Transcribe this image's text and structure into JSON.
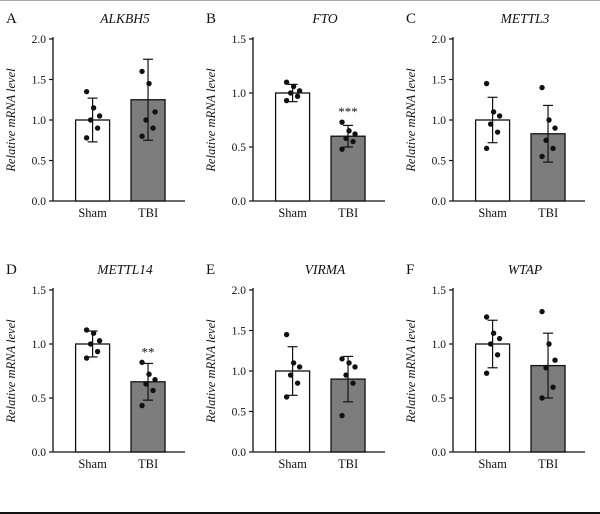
{
  "figure": {
    "layout": {
      "rows": 2,
      "cols": 3
    },
    "ylabel": "Relative mRNA level",
    "categories": [
      "Sham",
      "TBI"
    ],
    "bar_colors": [
      "#ffffff",
      "#7d7d7d"
    ]
  },
  "chart_data": [
    {
      "type": "bar",
      "panel": "A",
      "title": "ALKBH5",
      "categories": [
        "Sham",
        "TBI"
      ],
      "values": [
        1.0,
        1.25
      ],
      "errors": [
        0.27,
        0.5
      ],
      "points": [
        [
          0.78,
          0.9,
          1.0,
          1.05,
          1.15,
          1.35
        ],
        [
          0.8,
          0.9,
          1.0,
          1.1,
          1.45,
          1.6
        ]
      ],
      "significance": "",
      "ylabel": "Relative mRNA level",
      "ylim": [
        0,
        2.0
      ],
      "yticks": [
        0,
        0.5,
        1.0,
        1.5,
        2.0
      ],
      "bar_colors": [
        "#ffffff",
        "#7d7d7d"
      ]
    },
    {
      "type": "bar",
      "panel": "B",
      "title": "FTO",
      "categories": [
        "Sham",
        "TBI"
      ],
      "values": [
        1.0,
        0.6
      ],
      "errors": [
        0.08,
        0.1
      ],
      "points": [
        [
          0.93,
          0.97,
          1.0,
          1.02,
          1.06,
          1.1
        ],
        [
          0.48,
          0.55,
          0.58,
          0.62,
          0.65,
          0.73
        ]
      ],
      "significance": "***",
      "ylabel": "Relative mRNA level",
      "ylim": [
        0,
        1.5
      ],
      "yticks": [
        0,
        0.5,
        1.0,
        1.5
      ],
      "bar_colors": [
        "#ffffff",
        "#7d7d7d"
      ]
    },
    {
      "type": "bar",
      "panel": "C",
      "title": "METTL3",
      "categories": [
        "Sham",
        "TBI"
      ],
      "values": [
        1.0,
        0.83
      ],
      "errors": [
        0.28,
        0.35
      ],
      "points": [
        [
          0.65,
          0.85,
          0.95,
          1.05,
          1.1,
          1.45
        ],
        [
          0.55,
          0.65,
          0.75,
          0.9,
          1.0,
          1.4
        ]
      ],
      "significance": "",
      "ylabel": "Relative mRNA level",
      "ylim": [
        0,
        2.0
      ],
      "yticks": [
        0,
        0.5,
        1.0,
        1.5,
        2.0
      ],
      "bar_colors": [
        "#ffffff",
        "#7d7d7d"
      ]
    },
    {
      "type": "bar",
      "panel": "D",
      "title": "METTL14",
      "categories": [
        "Sham",
        "TBI"
      ],
      "values": [
        1.0,
        0.65
      ],
      "errors": [
        0.12,
        0.17
      ],
      "points": [
        [
          0.87,
          0.93,
          1.0,
          1.03,
          1.1,
          1.13
        ],
        [
          0.43,
          0.57,
          0.63,
          0.67,
          0.72,
          0.83
        ]
      ],
      "significance": "**",
      "ylabel": "Relative mRNA level",
      "ylim": [
        0,
        1.5
      ],
      "yticks": [
        0,
        0.5,
        1.0,
        1.5
      ],
      "bar_colors": [
        "#ffffff",
        "#7d7d7d"
      ]
    },
    {
      "type": "bar",
      "panel": "E",
      "title": "VIRMA",
      "categories": [
        "Sham",
        "TBI"
      ],
      "values": [
        1.0,
        0.9
      ],
      "errors": [
        0.3,
        0.28
      ],
      "points": [
        [
          0.68,
          0.85,
          0.95,
          1.05,
          1.1,
          1.45
        ],
        [
          0.45,
          0.85,
          0.95,
          1.05,
          1.1,
          1.15
        ]
      ],
      "significance": "",
      "ylabel": "Relative mRNA level",
      "ylim": [
        0,
        2.0
      ],
      "yticks": [
        0,
        0.5,
        1.0,
        1.5,
        2.0
      ],
      "bar_colors": [
        "#ffffff",
        "#7d7d7d"
      ]
    },
    {
      "type": "bar",
      "panel": "F",
      "title": "WTAP",
      "categories": [
        "Sham",
        "TBI"
      ],
      "values": [
        1.0,
        0.8
      ],
      "errors": [
        0.22,
        0.3
      ],
      "points": [
        [
          0.73,
          0.9,
          1.0,
          1.05,
          1.1,
          1.25
        ],
        [
          0.5,
          0.6,
          0.78,
          0.85,
          1.0,
          1.3
        ]
      ],
      "significance": "",
      "ylabel": "Relative mRNA level",
      "ylim": [
        0,
        1.5
      ],
      "yticks": [
        0,
        0.5,
        1.0,
        1.5
      ],
      "bar_colors": [
        "#ffffff",
        "#7d7d7d"
      ]
    }
  ]
}
